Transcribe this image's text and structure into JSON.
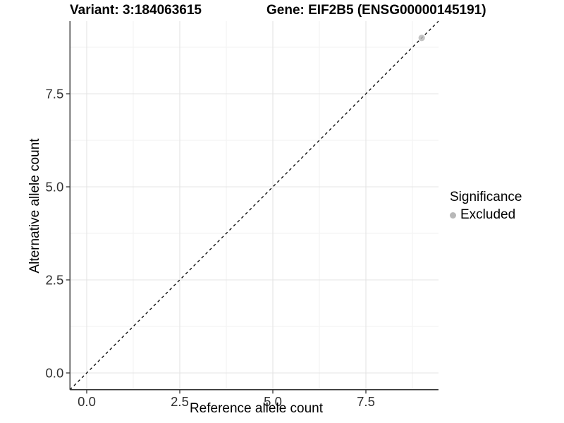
{
  "header": {
    "variant_title": "Variant: 3:184063615",
    "gene_title": "Gene: EIF2B5 (ENSG00000145191)"
  },
  "chart_data": {
    "type": "scatter",
    "title": "Variant: 3:184063615  Gene: EIF2B5 (ENSG00000145191)",
    "xlabel": "Reference allele count",
    "ylabel": "Alternative allele count",
    "xlim": [
      -0.45,
      9.45
    ],
    "ylim": [
      -0.45,
      9.45
    ],
    "x_ticks": {
      "values": [
        0,
        2.5,
        5,
        7.5
      ],
      "labels": [
        "0.0",
        "2.5",
        "5.0",
        "7.5"
      ]
    },
    "y_ticks": {
      "values": [
        0,
        2.5,
        5,
        7.5
      ],
      "labels": [
        "0.0",
        "2.5",
        "5.0",
        "7.5"
      ]
    },
    "minor_ticks": [
      1.25,
      3.75,
      6.25,
      8.75
    ],
    "grid": true,
    "identity_line": {
      "slope": 1,
      "intercept": 0,
      "style": "dashed",
      "color": "#000000"
    },
    "series": [
      {
        "name": "Excluded",
        "color": "#b8b8b8",
        "points": [
          {
            "x": 9,
            "y": 9
          }
        ]
      }
    ],
    "legend": {
      "title": "Significance",
      "position": "right",
      "items": [
        {
          "label": "Excluded",
          "color": "#b8b8b8",
          "marker": "circle"
        }
      ]
    },
    "colors": {
      "background": "#ffffff",
      "grid_major": "#e4e4e4",
      "grid_minor": "#f1f1f1",
      "axis_line": "#333333",
      "tick_label": "#303030",
      "text": "#000000"
    }
  }
}
